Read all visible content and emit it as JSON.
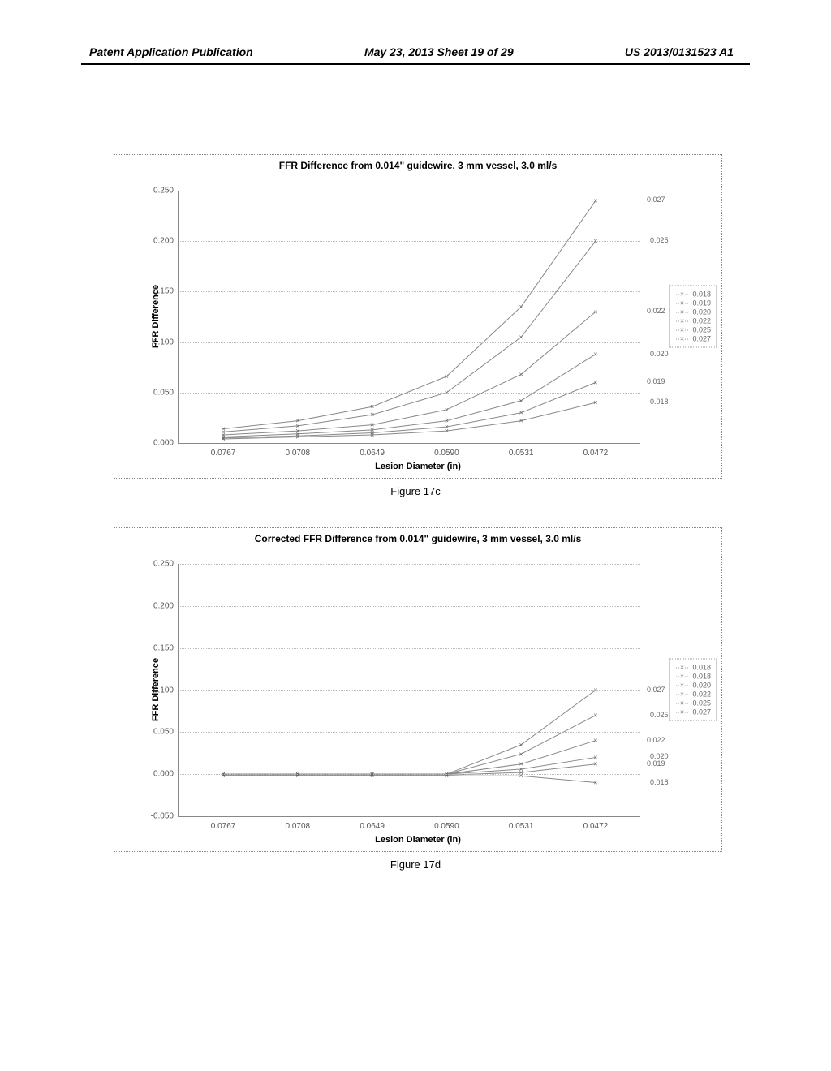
{
  "header": {
    "left": "Patent Application Publication",
    "center": "May 23, 2013  Sheet 19 of 29",
    "right": "US 2013/0131523 A1"
  },
  "chart1": {
    "type": "line",
    "title": "FFR Difference from 0.014\" guidewire, 3 mm vessel, 3.0 ml/s",
    "caption": "Figure 17c",
    "ylabel": "FFR Difference",
    "xlabel": "Lesion Diameter (in)",
    "ylim": [
      0.0,
      0.25
    ],
    "ytick_step": 0.05,
    "ytick_labels": [
      "0.000",
      "0.050",
      "0.100",
      "0.150",
      "0.200",
      "0.250"
    ],
    "x_categories": [
      "0.0767",
      "0.0708",
      "0.0649",
      "0.0590",
      "0.0531",
      "0.0472"
    ],
    "line_color": "#888888",
    "marker_style": "×",
    "grid_color": "#bbbbbb",
    "background_color": "#ffffff",
    "legend_items": [
      "0.018",
      "0.019",
      "0.020",
      "0.022",
      "0.025",
      "0.027"
    ],
    "series": [
      {
        "label": "0.018",
        "endlabel": "0.018",
        "values": [
          0.004,
          0.006,
          0.008,
          0.012,
          0.022,
          0.04
        ]
      },
      {
        "label": "0.019",
        "endlabel": "0.019",
        "values": [
          0.005,
          0.007,
          0.01,
          0.016,
          0.03,
          0.06
        ]
      },
      {
        "label": "0.020",
        "endlabel": "0.020",
        "values": [
          0.006,
          0.009,
          0.013,
          0.022,
          0.042,
          0.088
        ]
      },
      {
        "label": "0.022",
        "endlabel": "0.022",
        "values": [
          0.008,
          0.012,
          0.018,
          0.033,
          0.068,
          0.13
        ]
      },
      {
        "label": "0.025",
        "endlabel": "0.025",
        "values": [
          0.011,
          0.017,
          0.028,
          0.05,
          0.105,
          0.2
        ]
      },
      {
        "label": "0.027",
        "endlabel": "0.027",
        "values": [
          0.014,
          0.022,
          0.036,
          0.066,
          0.135,
          0.24
        ]
      }
    ]
  },
  "chart2": {
    "type": "line",
    "title": "Corrected FFR Difference from 0.014\" guidewire, 3 mm vessel, 3.0 ml/s",
    "caption": "Figure 17d",
    "ylabel": "FFR Difference",
    "xlabel": "Lesion Diameter (in)",
    "ylim": [
      -0.05,
      0.25
    ],
    "ytick_step": 0.05,
    "ytick_labels": [
      "-0.050",
      "0.000",
      "0.050",
      "0.100",
      "0.150",
      "0.200",
      "0.250"
    ],
    "x_categories": [
      "0.0767",
      "0.0708",
      "0.0649",
      "0.0590",
      "0.0531",
      "0.0472"
    ],
    "line_color": "#888888",
    "marker_style": "×",
    "grid_color": "#bbbbbb",
    "background_color": "#ffffff",
    "legend_items": [
      "0.018",
      "0.018",
      "0.020",
      "0.022",
      "0.025",
      "0.027"
    ],
    "series": [
      {
        "label": "0.018",
        "endlabel": "0.018",
        "values": [
          -0.002,
          -0.002,
          -0.002,
          -0.002,
          -0.002,
          -0.01
        ]
      },
      {
        "label": "0.019",
        "endlabel": "0.019",
        "values": [
          -0.001,
          -0.001,
          -0.001,
          -0.001,
          0.002,
          0.012
        ]
      },
      {
        "label": "0.020",
        "endlabel": "0.020",
        "values": [
          0.0,
          0.0,
          0.0,
          0.0,
          0.006,
          0.02
        ]
      },
      {
        "label": "0.022",
        "endlabel": "0.022",
        "values": [
          0.0,
          0.0,
          0.0,
          0.0,
          0.012,
          0.04
        ]
      },
      {
        "label": "0.025",
        "endlabel": "0.025",
        "values": [
          0.0,
          0.0,
          0.0,
          0.0,
          0.024,
          0.07
        ]
      },
      {
        "label": "0.027",
        "endlabel": "0.027",
        "values": [
          0.0,
          0.0,
          0.0,
          0.0,
          0.035,
          0.1
        ]
      }
    ]
  }
}
